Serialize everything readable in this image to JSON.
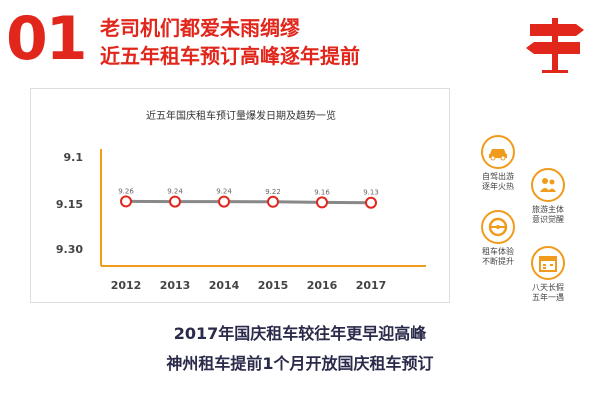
{
  "header": {
    "number": "01",
    "line1": "老司机们都爱未雨绸缪",
    "line2": "近五年租车预订高峰逐年提前"
  },
  "side_items": [
    {
      "label": "自驾出游\n逐年火热",
      "icon": "car-icon"
    },
    {
      "label": "旅游主体\n意识觉醒",
      "icon": "people-icon"
    },
    {
      "label": "租车体验\n不断提升",
      "icon": "steering-wheel-icon"
    },
    {
      "label": "八天长假\n五年一遇",
      "icon": "calendar-icon"
    }
  ],
  "footer": {
    "line1": "2017年国庆租车较往年更早迎高峰",
    "line2": "神州租车提前1个月开放国庆租车预订"
  },
  "colors": {
    "accent": "#e1261c",
    "orange": "#f19b1c",
    "line": "#888888",
    "marker": "#e1261c"
  },
  "chart_data": {
    "type": "line",
    "title": "近五年国庆租车预订量爆发日期及趋势一览",
    "xlabel": "",
    "ylabel": "",
    "categories": [
      "2012",
      "2013",
      "2014",
      "2015",
      "2016",
      "2017"
    ],
    "y_ticks": [
      "9.1",
      "9.15",
      "9.30"
    ],
    "values": [
      9.26,
      9.24,
      9.24,
      9.22,
      9.16,
      9.13
    ],
    "data_labels": [
      "9.26",
      "9.24",
      "9.24",
      "9.22",
      "9.16",
      "9.13"
    ],
    "grid": false
  }
}
